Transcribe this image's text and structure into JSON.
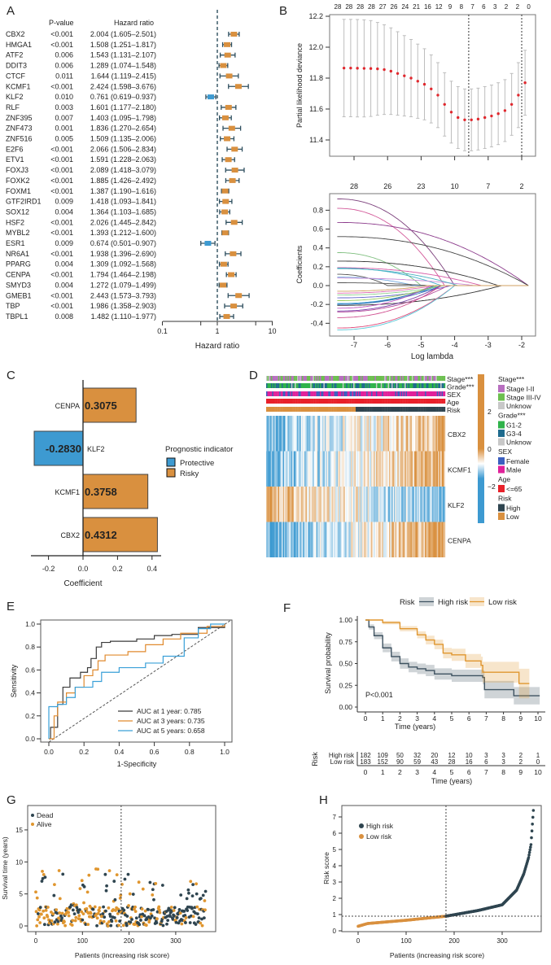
{
  "panel_labels": [
    "A",
    "B",
    "C",
    "D",
    "E",
    "F",
    "G",
    "H"
  ],
  "chart_data": [
    {
      "panel": "A",
      "type": "table",
      "headers": {
        "p": "P-value",
        "hr": "Hazard ratio"
      },
      "xlabel": "Hazard ratio",
      "xscale": "log",
      "xlim": [
        0.1,
        10
      ],
      "xticks": [
        "0.1",
        "1",
        "10"
      ],
      "reference_line": 1,
      "colors": {
        "risky": "#d9903f",
        "protective": "#3d9ad1",
        "ci": "#2f4f5f"
      },
      "rows": [
        [
          "CBX2",
          "<0.001",
          "2.004",
          "1.605",
          "2.501"
        ],
        [
          "HMGA1",
          "<0.001",
          "1.508",
          "1.251",
          "1.817"
        ],
        [
          "ATF2",
          "0.006",
          "1.543",
          "1.131",
          "2.107"
        ],
        [
          "DDIT3",
          "0.006",
          "1.289",
          "1.074",
          "1.548"
        ],
        [
          "CTCF",
          "0.011",
          "1.644",
          "1.119",
          "2.415"
        ],
        [
          "KCMF1",
          "<0.001",
          "2.424",
          "1.598",
          "3.676"
        ],
        [
          "KLF2",
          "0.010",
          "0.761",
          "0.619",
          "0.937"
        ],
        [
          "RLF",
          "0.003",
          "1.601",
          "1.177",
          "2.180"
        ],
        [
          "ZNF395",
          "0.007",
          "1.403",
          "1.095",
          "1.798"
        ],
        [
          "ZNF473",
          "0.001",
          "1.836",
          "1.270",
          "2.654"
        ],
        [
          "ZNF516",
          "0.005",
          "1.509",
          "1.135",
          "2.006"
        ],
        [
          "E2F6",
          "<0.001",
          "2.066",
          "1.506",
          "2.834"
        ],
        [
          "ETV1",
          "<0.001",
          "1.591",
          "1.228",
          "2.063"
        ],
        [
          "FOXJ3",
          "<0.001",
          "2.089",
          "1.418",
          "3.079"
        ],
        [
          "FOXK2",
          "<0.001",
          "1.885",
          "1.426",
          "2.492"
        ],
        [
          "FOXM1",
          "<0.001",
          "1.387",
          "1.190",
          "1.616"
        ],
        [
          "GTF2IRD1",
          "0.009",
          "1.418",
          "1.093",
          "1.841"
        ],
        [
          "SOX12",
          "0.004",
          "1.364",
          "1.103",
          "1.685"
        ],
        [
          "HSF2",
          "<0.001",
          "2.026",
          "1.445",
          "2.842"
        ],
        [
          "MYBL2",
          "<0.001",
          "1.393",
          "1.212",
          "1.600"
        ],
        [
          "ESR1",
          "0.009",
          "0.674",
          "0.501",
          "0.907"
        ],
        [
          "NR6A1",
          "<0.001",
          "1.938",
          "1.396",
          "2.690"
        ],
        [
          "PPARG",
          "0.004",
          "1.309",
          "1.092",
          "1.568"
        ],
        [
          "CENPA",
          "<0.001",
          "1.794",
          "1.464",
          "2.198"
        ],
        [
          "SMYD3",
          "0.004",
          "1.272",
          "1.079",
          "1.499"
        ],
        [
          "GMEB1",
          "<0.001",
          "2.443",
          "1.573",
          "3.793"
        ],
        [
          "TBP",
          "<0.001",
          "1.986",
          "1.358",
          "2.903"
        ],
        [
          "TBPL1",
          "0.008",
          "1.482",
          "1.110",
          "1.977"
        ]
      ]
    },
    {
      "panel": "B-top",
      "type": "scatter",
      "ylabel": "Partial likelihood deviance",
      "ylim": [
        11.3,
        12.2
      ],
      "yticks": [
        "11.4",
        "11.6",
        "11.8",
        "12.0",
        "12.2"
      ],
      "xlim": [
        -7.5,
        -1.7
      ],
      "top_labels": [
        "28",
        "28",
        "28",
        "28",
        "27",
        "26",
        "24",
        "21",
        "16",
        "12",
        "9",
        "8",
        "7",
        "6",
        "3",
        "2",
        "2",
        "0"
      ],
      "vlines": [
        -3.58,
        -2.0
      ],
      "log_lambda": [
        -7.3,
        -7.1,
        -6.9,
        -6.7,
        -6.5,
        -6.3,
        -6.1,
        -5.9,
        -5.7,
        -5.5,
        -5.3,
        -5.1,
        -4.9,
        -4.7,
        -4.5,
        -4.3,
        -4.1,
        -3.9,
        -3.7,
        -3.5,
        -3.3,
        -3.1,
        -2.9,
        -2.7,
        -2.5,
        -2.3,
        -2.1,
        -1.9
      ],
      "mean": [
        11.865,
        11.865,
        11.864,
        11.863,
        11.862,
        11.86,
        11.855,
        11.845,
        11.83,
        11.815,
        11.8,
        11.78,
        11.76,
        11.73,
        11.69,
        11.63,
        11.58,
        11.545,
        11.53,
        11.53,
        11.535,
        11.545,
        11.555,
        11.57,
        11.59,
        11.63,
        11.69,
        11.77
      ],
      "se": [
        0.315,
        0.315,
        0.315,
        0.314,
        0.31,
        0.3,
        0.29,
        0.28,
        0.27,
        0.26,
        0.25,
        0.24,
        0.23,
        0.22,
        0.21,
        0.205,
        0.2,
        0.2,
        0.2,
        0.2,
        0.2,
        0.2,
        0.2,
        0.2,
        0.2,
        0.2,
        0.21,
        0.21
      ],
      "colors": {
        "point": "#e0282e",
        "bar": "#bdbdbd"
      }
    },
    {
      "panel": "B-bottom",
      "type": "line",
      "xlabel": "Log lambda",
      "ylabel": "Coefficients",
      "xlim": [
        -7.5,
        -1.7
      ],
      "ylim": [
        -0.47,
        0.95
      ],
      "xticks": [
        "-7",
        "-6",
        "-5",
        "-4",
        "-3",
        "-2"
      ],
      "yticks": [
        "-0.4",
        "-0.2",
        "0.0",
        "0.2",
        "0.4",
        "0.6",
        "0.8"
      ],
      "top_labels": [
        "28",
        "26",
        "23",
        "10",
        "7",
        "2"
      ],
      "paths_start": [
        0.92,
        0.82,
        0.67,
        0.52,
        0.35,
        0.26,
        0.19,
        0.185,
        0.12,
        0.09,
        0.08,
        0.03,
        -0.08,
        -0.1,
        -0.13,
        -0.19,
        -0.2,
        -0.2,
        -0.21,
        -0.24,
        -0.27,
        -0.28,
        -0.34,
        -0.45,
        -0.47,
        -0.16,
        0.18,
        -0.06
      ],
      "paths_zero_at": [
        -4.0,
        -4.3,
        -1.8,
        -1.8,
        -5.0,
        -2.7,
        -3.2,
        -4.4,
        -6.0,
        -5.2,
        -3.4,
        -4.8,
        -4.6,
        -4.3,
        -4.1,
        -4.5,
        -4.6,
        -4.4,
        -2.6,
        -4.7,
        -4.4,
        -4.2,
        -4.4,
        -4.0,
        -4.0,
        -4.5,
        -3.9,
        -4.8
      ]
    },
    {
      "panel": "C",
      "type": "bar",
      "xlabel": "Coefficient",
      "xlim": [
        -0.27,
        0.45
      ],
      "xticks": [
        "-0.2",
        "0.0",
        "0.2",
        "0.4"
      ],
      "categories": [
        "CENPA",
        "KLF2",
        "KCMF1",
        "CBX2"
      ],
      "values": [
        0.3075,
        -0.283,
        0.3758,
        0.4312
      ],
      "value_labels": [
        "0.3075",
        "-0.2830",
        "0.3758",
        "0.4312"
      ],
      "legend": {
        "title": "Prognostic indicator",
        "items": [
          "Protective",
          "Risky"
        ]
      },
      "colors": {
        "Protective": "#3d9ad1",
        "Risky": "#d9903f",
        "label": "#e8302a"
      }
    },
    {
      "panel": "D",
      "type": "heatmap",
      "annotation_rows": [
        "Stage***",
        "Grade***",
        "SEX",
        "Age",
        "Risk"
      ],
      "rows": [
        "CBX2",
        "KCMF1",
        "KLF2",
        "CENPA"
      ],
      "colorbar_ticks": [
        "2",
        "0",
        "−2"
      ],
      "legend": [
        {
          "title": "Stage***",
          "items": [
            [
              "Stage I-II",
              "#b86fc0"
            ],
            [
              "Stage III-IV",
              "#6cbf4f"
            ],
            [
              "Unknow",
              "#c8c8c8"
            ]
          ]
        },
        {
          "title": "Grade***",
          "items": [
            [
              "G1-2",
              "#2fb34a"
            ],
            [
              "G3-4",
              "#1f6b8e"
            ],
            [
              "Unknow",
              "#c8c8c8"
            ]
          ]
        },
        {
          "title": "SEX",
          "items": [
            [
              "Female",
              "#3b5fc0"
            ],
            [
              "Male",
              "#e0219a"
            ]
          ]
        },
        {
          "title": "Age",
          "items": [
            [
              "<=65",
              "#e8212a"
            ]
          ]
        },
        {
          "title": "Risk",
          "items": [
            [
              "High",
              "#2f4550"
            ],
            [
              "Low",
              "#d9903f"
            ]
          ]
        }
      ],
      "scale_colors": {
        "low": "#3d9ad1",
        "mid": "#ffffff",
        "high": "#d9903f"
      }
    },
    {
      "panel": "E",
      "type": "line",
      "xlabel": "1-Specificity",
      "ylabel": "Sensitivity",
      "xlim": [
        0,
        1
      ],
      "ylim": [
        0,
        1
      ],
      "ticks": [
        "0.0",
        "0.2",
        "0.4",
        "0.6",
        "0.8",
        "1.0"
      ],
      "series": [
        {
          "name": "AUC at 1 year: 0.785",
          "color": "#3a3a3a",
          "points": [
            [
              0,
              0
            ],
            [
              0.01,
              0.1
            ],
            [
              0.05,
              0.3
            ],
            [
              0.08,
              0.45
            ],
            [
              0.12,
              0.53
            ],
            [
              0.18,
              0.58
            ],
            [
              0.22,
              0.62
            ],
            [
              0.24,
              0.7
            ],
            [
              0.27,
              0.8
            ],
            [
              0.3,
              0.84
            ],
            [
              0.35,
              0.85
            ],
            [
              0.5,
              0.87
            ],
            [
              0.6,
              0.9
            ],
            [
              0.7,
              0.91
            ],
            [
              0.85,
              0.97
            ],
            [
              1,
              1
            ]
          ]
        },
        {
          "name": "AUC at 3 years: 0.735",
          "color": "#e08a2e",
          "points": [
            [
              0,
              0
            ],
            [
              0.03,
              0.2
            ],
            [
              0.05,
              0.32
            ],
            [
              0.1,
              0.4
            ],
            [
              0.15,
              0.45
            ],
            [
              0.2,
              0.55
            ],
            [
              0.25,
              0.6
            ],
            [
              0.28,
              0.68
            ],
            [
              0.32,
              0.73
            ],
            [
              0.45,
              0.76
            ],
            [
              0.55,
              0.82
            ],
            [
              0.65,
              0.87
            ],
            [
              0.75,
              0.92
            ],
            [
              0.9,
              0.98
            ],
            [
              1,
              1
            ]
          ]
        },
        {
          "name": "AUC at 5 years: 0.658",
          "color": "#3aa0d8",
          "points": [
            [
              0,
              0
            ],
            [
              0,
              0.28
            ],
            [
              0.05,
              0.3
            ],
            [
              0.1,
              0.36
            ],
            [
              0.15,
              0.45
            ],
            [
              0.25,
              0.5
            ],
            [
              0.3,
              0.58
            ],
            [
              0.4,
              0.62
            ],
            [
              0.55,
              0.66
            ],
            [
              0.65,
              0.72
            ],
            [
              0.75,
              0.72
            ],
            [
              0.77,
              0.88
            ],
            [
              0.85,
              0.96
            ],
            [
              0.92,
              1
            ],
            [
              1,
              1
            ]
          ]
        }
      ]
    },
    {
      "panel": "F",
      "type": "line",
      "xlabel": "Time (years)",
      "ylabel": "Survival probability",
      "xlim": [
        0,
        10
      ],
      "ylim": [
        0,
        1
      ],
      "yticks": [
        "0.00",
        "0.25",
        "0.50",
        "0.75",
        "1.00"
      ],
      "xticks": [
        "0",
        "1",
        "2",
        "3",
        "4",
        "5",
        "6",
        "7",
        "8",
        "9",
        "10"
      ],
      "legend_title": "Risk",
      "pvalue": "P<0.001",
      "series": [
        {
          "name": "High risk",
          "color": "#3e5260",
          "steps": [
            [
              0,
              1
            ],
            [
              0.2,
              0.92
            ],
            [
              0.5,
              0.82
            ],
            [
              1,
              0.68
            ],
            [
              1.5,
              0.58
            ],
            [
              2,
              0.5
            ],
            [
              2.5,
              0.46
            ],
            [
              3,
              0.44
            ],
            [
              3.5,
              0.42
            ],
            [
              4,
              0.38
            ],
            [
              5,
              0.36
            ],
            [
              6.8,
              0.34
            ],
            [
              6.9,
              0.2
            ],
            [
              8.6,
              0.13
            ],
            [
              10.1,
              0.13
            ]
          ],
          "ci_halfwidth": [
            0,
            0.03,
            0.04,
            0.05,
            0.055,
            0.06,
            0.06,
            0.06,
            0.065,
            0.065,
            0.07,
            0.08,
            0.1,
            0.1,
            0.1
          ]
        },
        {
          "name": "Low risk",
          "color": "#e0962f",
          "steps": [
            [
              0,
              1
            ],
            [
              1,
              0.97
            ],
            [
              2,
              0.9
            ],
            [
              3,
              0.83
            ],
            [
              3.5,
              0.77
            ],
            [
              4,
              0.72
            ],
            [
              4.5,
              0.62
            ],
            [
              5,
              0.6
            ],
            [
              5.8,
              0.53
            ],
            [
              6.7,
              0.48
            ],
            [
              6.8,
              0.4
            ],
            [
              8.9,
              0.27
            ],
            [
              9.5,
              0.27
            ]
          ],
          "ci_halfwidth": [
            0,
            0.02,
            0.03,
            0.04,
            0.05,
            0.055,
            0.06,
            0.07,
            0.08,
            0.1,
            0.12,
            0.17,
            0.17
          ]
        }
      ],
      "risk_table": {
        "title": "Risk",
        "rows": [
          {
            "name": "High risk",
            "counts": [
              "182",
              "109",
              "50",
              "32",
              "20",
              "12",
              "10",
              "3",
              "3",
              "2",
              "1"
            ]
          },
          {
            "name": "Low risk",
            "counts": [
              "183",
              "152",
              "90",
              "59",
              "43",
              "28",
              "16",
              "6",
              "3",
              "2",
              "0"
            ]
          }
        ]
      }
    },
    {
      "panel": "G",
      "type": "scatter",
      "xlabel": "Patients (increasing risk score)",
      "ylabel": "Survival time (years)",
      "xlim": [
        -5,
        370
      ],
      "ylim": [
        -1,
        18
      ],
      "xticks": [
        "0",
        "100",
        "200",
        "300"
      ],
      "yticks": [
        "0",
        "5",
        "10",
        "15"
      ],
      "cutoff_patient": 183,
      "legend": [
        {
          "name": "Dead",
          "color": "#2f4550"
        },
        {
          "name": "Alive",
          "color": "#e0962f"
        }
      ]
    },
    {
      "panel": "H",
      "type": "scatter",
      "xlabel": "Patients (increasing risk score)",
      "ylabel": "Risk score",
      "xlim": [
        -5,
        370
      ],
      "ylim": [
        0,
        7.6
      ],
      "xticks": [
        "0",
        "100",
        "200",
        "300"
      ],
      "yticks": [
        "0",
        "1",
        "2",
        "3",
        "4",
        "5",
        "6",
        "7"
      ],
      "cutoff_patient": 183,
      "cutoff_score": 0.9,
      "curve": [
        [
          0,
          0.28
        ],
        [
          20,
          0.45
        ],
        [
          100,
          0.65
        ],
        [
          183,
          0.9
        ],
        [
          250,
          1.25
        ],
        [
          300,
          1.6
        ],
        [
          330,
          2.5
        ],
        [
          345,
          3.5
        ],
        [
          355,
          4.5
        ],
        [
          360,
          5.3
        ],
        [
          365,
          7.4
        ]
      ],
      "legend": [
        {
          "name": "High risk",
          "color": "#2f4550"
        },
        {
          "name": "Low risk",
          "color": "#d9903f"
        }
      ]
    }
  ]
}
